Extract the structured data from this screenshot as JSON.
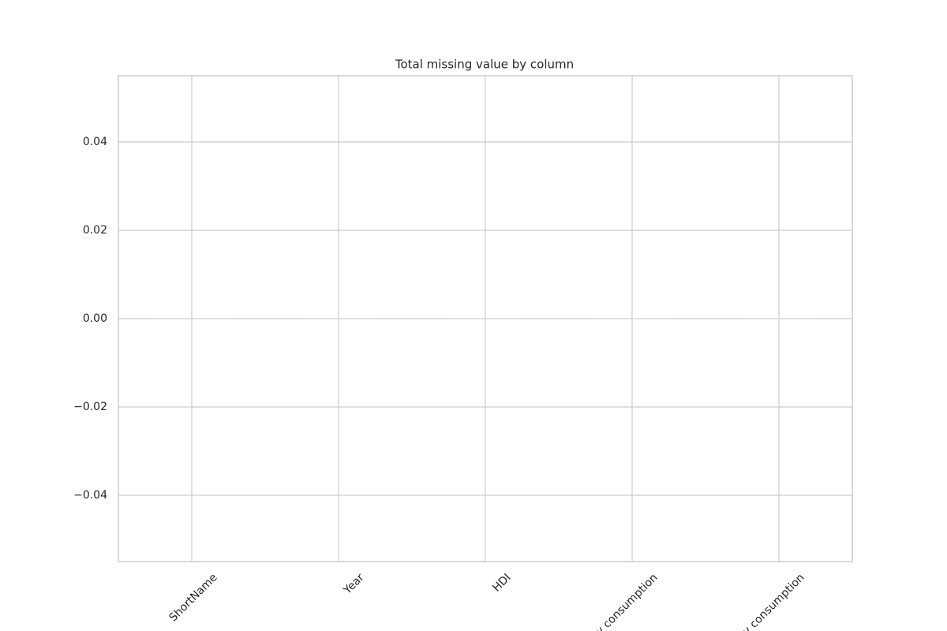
{
  "chart_data": {
    "type": "bar",
    "title": "Total missing value by column",
    "categories": [
      "ShortName",
      "Year",
      "HDI",
      "y consumption",
      "y consumption"
    ],
    "values": [
      0,
      0,
      0,
      0,
      0
    ],
    "color": "#e4e4e4",
    "ylim": [
      -0.055,
      0.055
    ],
    "yticks": [
      {
        "value": -0.04,
        "label": "−0.04"
      },
      {
        "value": -0.02,
        "label": "−0.02"
      },
      {
        "value": 0,
        "label": "0.00"
      },
      0.02,
      0.04
    ],
    "grid": true
  }
}
